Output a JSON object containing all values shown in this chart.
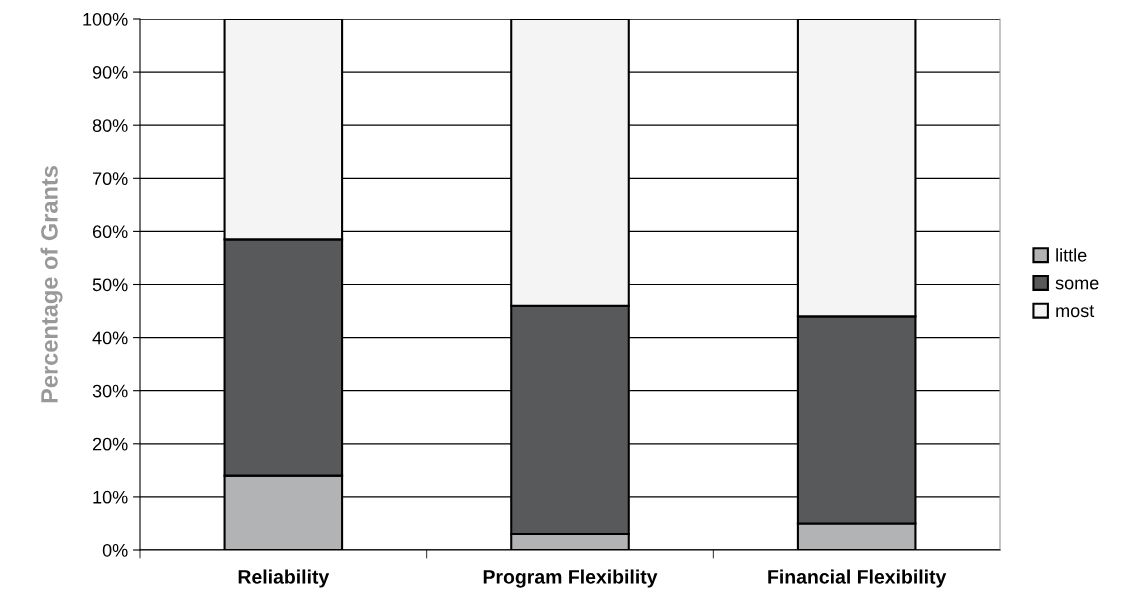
{
  "chart_data": {
    "type": "bar",
    "stacked": true,
    "ylabel": "Percentage of Grants",
    "categories": [
      "Reliability",
      "Program Flexibility",
      "Financial Flexibility"
    ],
    "series": [
      {
        "name": "little",
        "color": "#b2b3b5",
        "values": [
          14,
          3,
          5
        ]
      },
      {
        "name": "some",
        "color": "#58595b",
        "values": [
          44.5,
          43,
          39
        ]
      },
      {
        "name": "most",
        "color": "#f3f4f3",
        "values": [
          41.5,
          54,
          56
        ]
      }
    ],
    "ylim": [
      0,
      100
    ],
    "yticks": [
      {
        "value": 0,
        "label": "0%"
      },
      {
        "value": 10,
        "label": "10%"
      },
      {
        "value": 20,
        "label": "20%"
      },
      {
        "value": 30,
        "label": "30%"
      },
      {
        "value": 40,
        "label": "40%"
      },
      {
        "value": 50,
        "label": "50%"
      },
      {
        "value": 60,
        "label": "60%"
      },
      {
        "value": 70,
        "label": "70%"
      },
      {
        "value": 80,
        "label": "80%"
      },
      {
        "value": 90,
        "label": "90%"
      },
      {
        "value": 100,
        "label": "100%"
      }
    ],
    "grid": "y",
    "legend": "right"
  }
}
